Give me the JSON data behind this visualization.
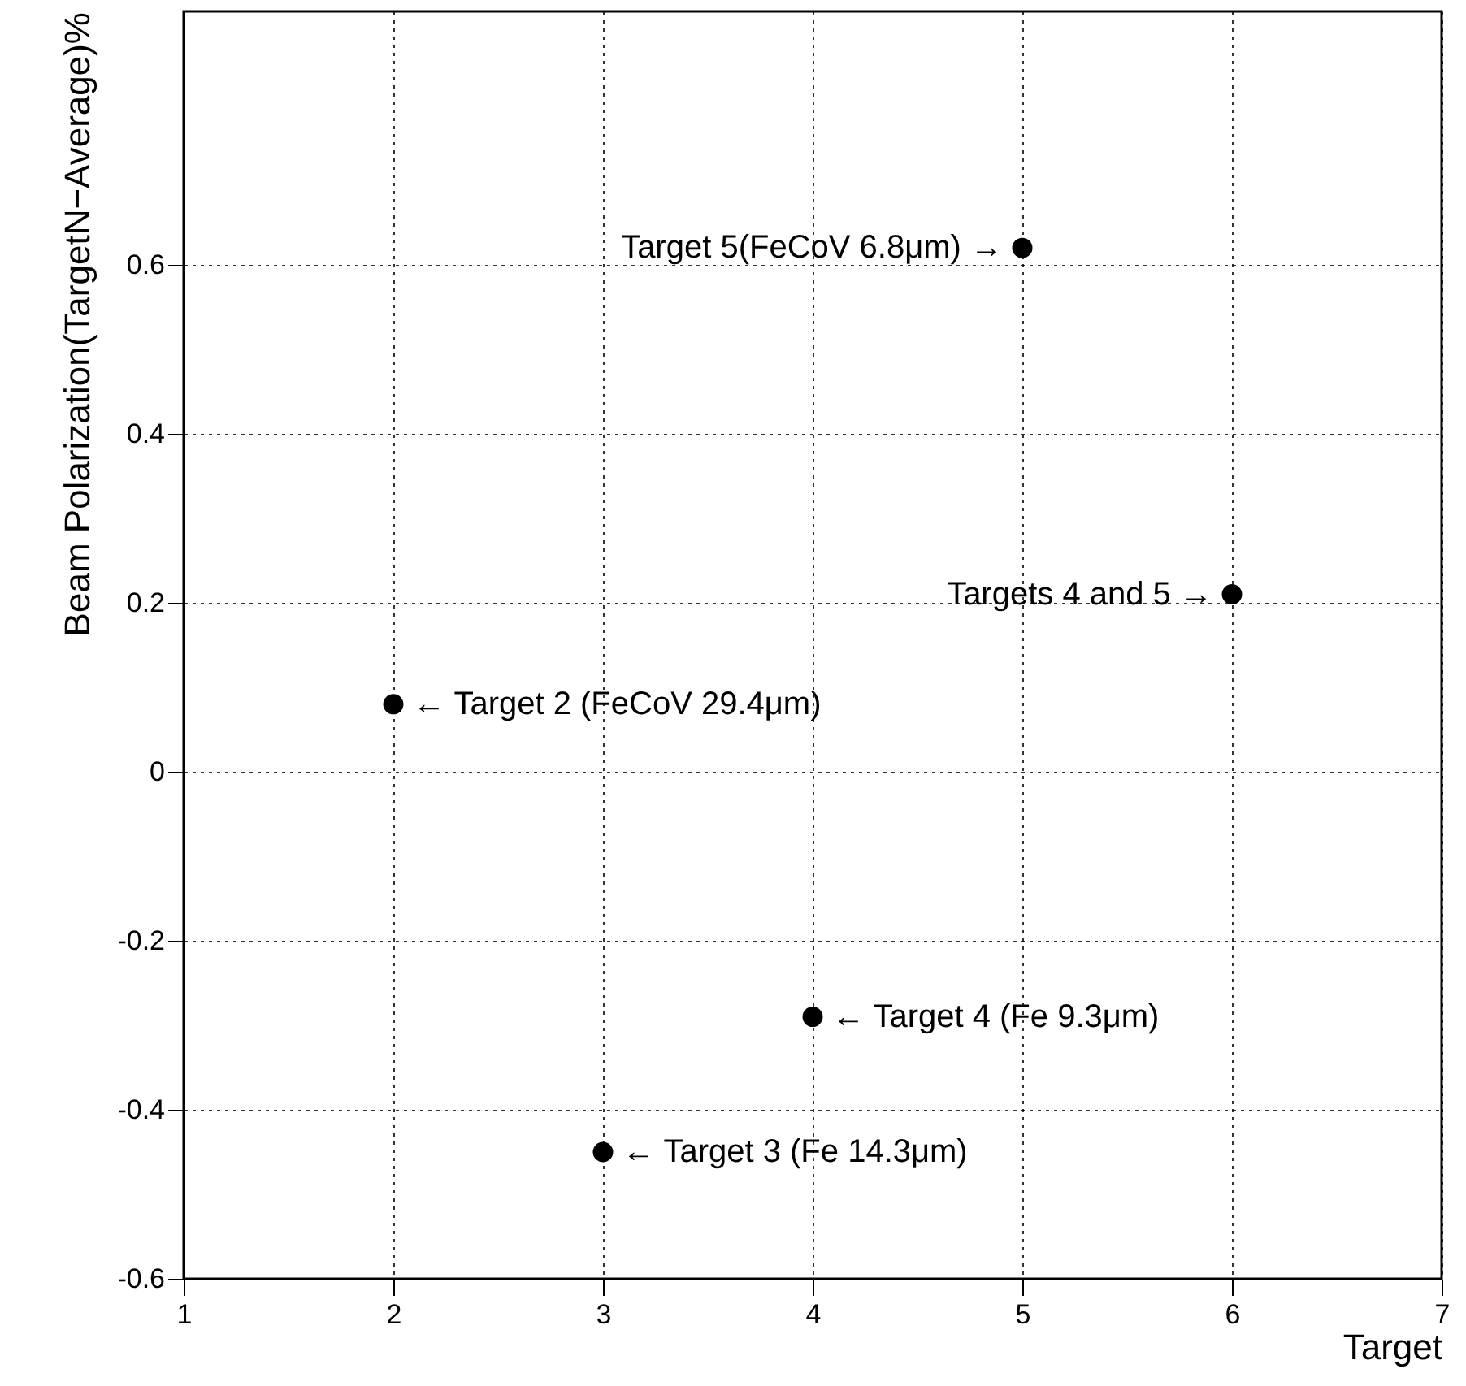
{
  "chart_data": {
    "type": "scatter",
    "xlabel": "Target",
    "ylabel": "Beam Polarization(TargetN−Average)%",
    "x": [
      2,
      3,
      4,
      5,
      6
    ],
    "values": [
      0.08,
      -0.45,
      -0.29,
      0.62,
      0.21
    ],
    "color": "#000000",
    "marker": "circle",
    "xlim": [
      1,
      7
    ],
    "xticks": [
      1,
      2,
      3,
      4,
      5,
      6,
      7
    ],
    "ylim": [
      -0.6,
      0.9
    ],
    "yticks": [
      -0.6,
      -0.4,
      -0.2,
      0,
      0.2,
      0.4,
      0.6
    ],
    "grid": true,
    "annotations": [
      {
        "text": "← Target 2 (FeCoV 29.4μm)",
        "x": 2,
        "y": 0.08
      },
      {
        "text": "← Target 3 (Fe 14.3μm)",
        "x": 3,
        "y": -0.45
      },
      {
        "text": "← Target 4 (Fe 9.3μm)",
        "x": 4,
        "y": -0.29
      },
      {
        "text": "Target 5(FeCoV 6.8μm) →",
        "x": 5,
        "y": 0.62
      },
      {
        "text": "Targets 4 and 5 →",
        "x": 6,
        "y": 0.21
      }
    ]
  }
}
